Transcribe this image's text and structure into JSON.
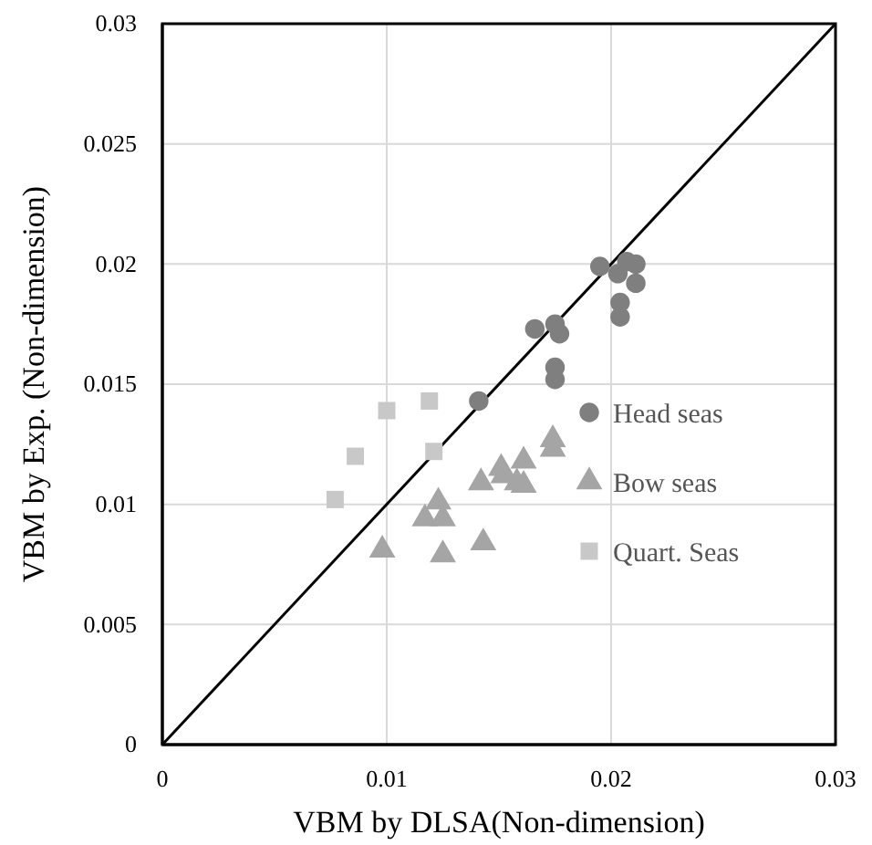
{
  "chart_data": {
    "type": "scatter",
    "xlabel": "VBM by DLSA(Non-dimension)",
    "ylabel": "VBM by Exp. (Non-dimension)",
    "xlim": [
      0,
      0.03
    ],
    "xticks": [
      0,
      0.01,
      0.02,
      0.03
    ],
    "ylim": [
      0,
      0.03
    ],
    "yticks": [
      0,
      0.005,
      0.01,
      0.015,
      0.02,
      0.025,
      0.03
    ],
    "grid": true,
    "legend": "bottom right",
    "series": [
      {
        "type": "line",
        "color": "#000000",
        "marker": "none",
        "x": [
          0,
          0.03
        ],
        "values": [
          0,
          0.03
        ]
      },
      {
        "name": "Head seas",
        "color": "#7f7f7f",
        "marker": "circle",
        "x": [
          0.0141,
          0.0166,
          0.0175,
          0.0177,
          0.0175,
          0.0175,
          0.0195,
          0.0203,
          0.0207,
          0.0211,
          0.0211,
          0.0204,
          0.0204
        ],
        "values": [
          0.0143,
          0.0173,
          0.0175,
          0.0171,
          0.0157,
          0.0152,
          0.0199,
          0.0196,
          0.0201,
          0.02,
          0.0192,
          0.0184,
          0.0178
        ]
      },
      {
        "name": "Bow seas",
        "color": "#a5a5a5",
        "marker": "triangle",
        "x": [
          0.0098,
          0.0123,
          0.0117,
          0.0125,
          0.0125,
          0.0142,
          0.0151,
          0.0152,
          0.0158,
          0.0161,
          0.0161,
          0.0174,
          0.0174,
          0.0143
        ],
        "values": [
          0.0081,
          0.0101,
          0.0094,
          0.0094,
          0.0079,
          0.0109,
          0.0115,
          0.0112,
          0.0109,
          0.0108,
          0.0118,
          0.0127,
          0.0123,
          0.0084
        ]
      },
      {
        "name": "Quart. Seas",
        "color": "#c8c8c8",
        "marker": "square",
        "x": [
          0.0077,
          0.0086,
          0.01,
          0.0119,
          0.0121
        ],
        "values": [
          0.0102,
          0.012,
          0.0139,
          0.0143,
          0.0122
        ]
      }
    ]
  }
}
